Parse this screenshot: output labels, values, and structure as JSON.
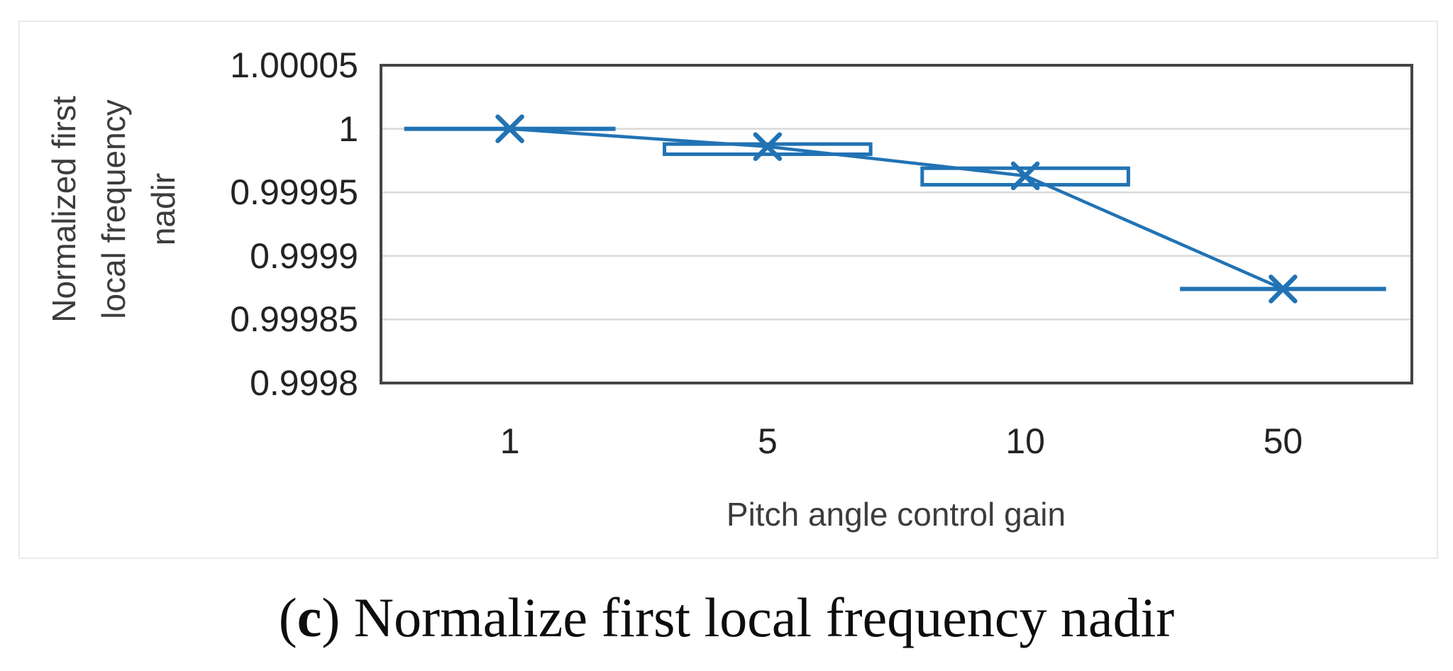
{
  "caption": {
    "open_paren": "(",
    "bold_letter": "c",
    "rest": ") Normalize first local frequency nadir"
  },
  "chart_data": {
    "type": "line",
    "subtype": "line-with-box-whiskers",
    "title": "",
    "xlabel": "Pitch angle control gain",
    "ylabel": "Normalized first local frequency nadir",
    "ylabel_lines": [
      "Normalized first",
      "local frequency",
      "nadir"
    ],
    "categories": [
      "1",
      "5",
      "10",
      "50"
    ],
    "ylim": [
      0.9998,
      1.00005
    ],
    "grid": true,
    "legend": false,
    "marker": "x",
    "colors": {
      "series": "#2173b4",
      "gridline": "#d9d9d9",
      "frame": "#454545",
      "tick_text": "#232323",
      "axis_title_text": "#3c3c3c"
    },
    "y_ticks": [
      {
        "value": 1.00005,
        "label": "1.00005"
      },
      {
        "value": 1.0,
        "label": "1"
      },
      {
        "value": 0.99995,
        "label": "0.99995"
      },
      {
        "value": 0.9999,
        "label": "0.9999"
      },
      {
        "value": 0.99985,
        "label": "0.99985"
      },
      {
        "value": 0.9998,
        "label": "0.9998"
      }
    ],
    "points": [
      {
        "category": "1",
        "mean": 1.0,
        "whisker_y": 1.0,
        "whisker_half_span": 0.41,
        "box": null
      },
      {
        "category": "5",
        "mean": 0.999986,
        "whisker_y": null,
        "whisker_half_span": null,
        "box": {
          "low": 0.99998,
          "high": 0.999988,
          "half_span": 0.4
        }
      },
      {
        "category": "10",
        "mean": 0.999963,
        "whisker_y": null,
        "whisker_half_span": null,
        "box": {
          "low": 0.999956,
          "high": 0.999969,
          "half_span": 0.4
        }
      },
      {
        "category": "50",
        "mean": 0.999874,
        "whisker_y": 0.999874,
        "whisker_half_span": 0.4,
        "box": null
      }
    ]
  }
}
